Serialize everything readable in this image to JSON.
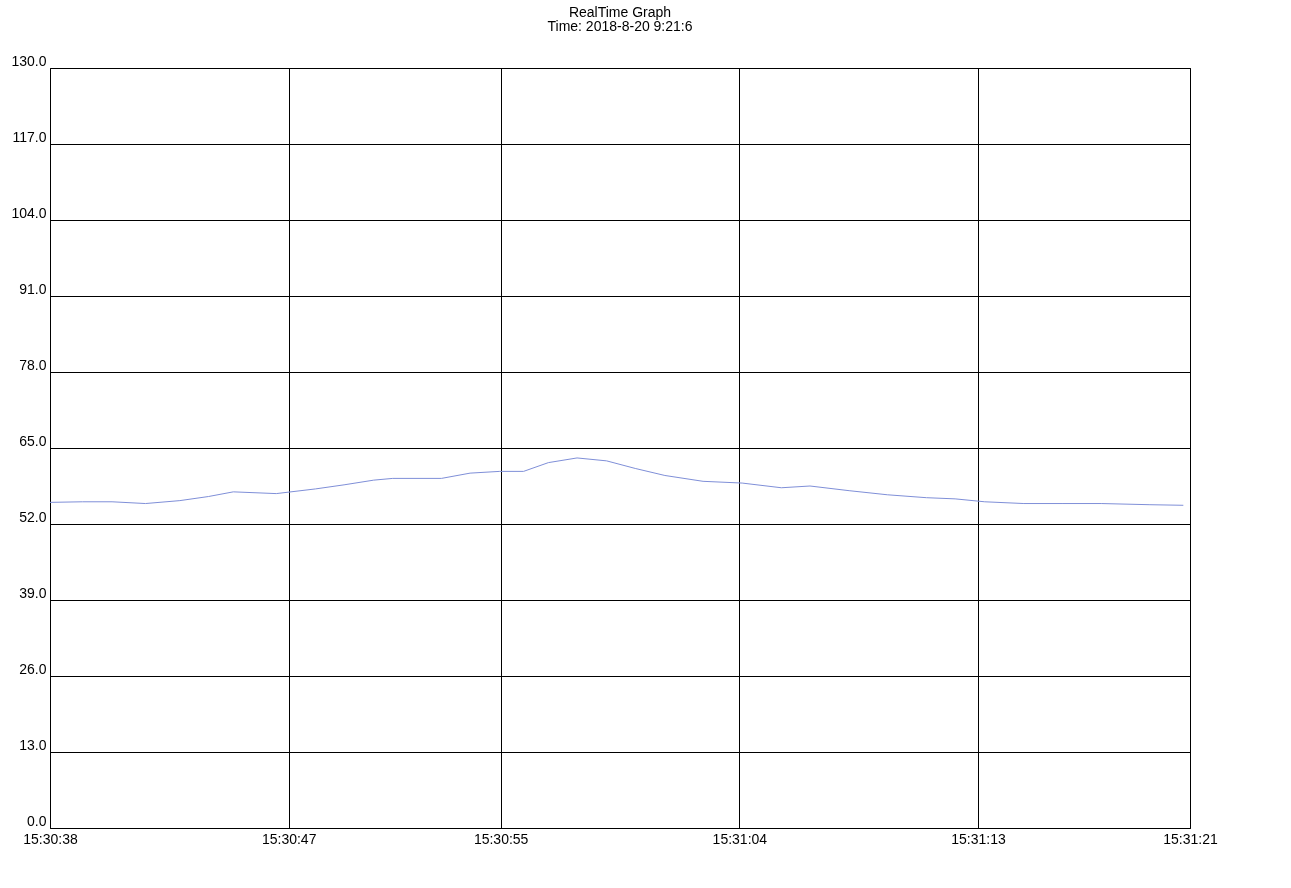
{
  "chart_data": {
    "type": "line",
    "title": "RealTime Graph",
    "subtitle": "Time: 2018-8-20  9:21:6",
    "x": [
      15.51056,
      15.5109,
      15.51121,
      15.51156,
      15.51192,
      15.51222,
      15.51248,
      15.51293,
      15.51334,
      15.51364,
      15.51395,
      15.51415,
      15.51466,
      15.51496,
      15.51527,
      15.51552,
      15.51578,
      15.51608,
      15.51639,
      15.51669,
      15.517,
      15.5174,
      15.51781,
      15.51822,
      15.51852,
      15.51893,
      15.51933,
      15.51974,
      15.52004,
      15.52035,
      15.52076,
      15.52116,
      15.52157,
      15.52208,
      15.52243
    ],
    "series": [
      {
        "color": "#7f8fd8",
        "values": [
          55.7,
          55.8,
          55.8,
          55.5,
          56,
          56.7,
          57.5,
          57.2,
          58,
          58.7,
          59.5,
          59.8,
          59.8,
          60.7,
          61,
          61,
          62.5,
          63.3,
          62.8,
          61.5,
          60.3,
          59.3,
          59,
          58.2,
          58.5,
          57.7,
          57,
          56.5,
          56.3,
          55.8,
          55.5,
          55.5,
          55.5,
          55.3,
          55.2
        ]
      }
    ],
    "xlim": [
      15.51056,
      15.5225
    ],
    "xticks": [
      {
        "value": 15.51056,
        "label": "15:30:38"
      },
      {
        "value": 15.51306,
        "label": "15:30:47"
      },
      {
        "value": 15.51528,
        "label": "15:30:55"
      },
      {
        "value": 15.51778,
        "label": "15:31:04"
      },
      {
        "value": 15.52028,
        "label": "15:31:13"
      },
      {
        "value": 15.5225,
        "label": "15:31:21"
      }
    ],
    "ylim": [
      0,
      130
    ],
    "yticks": [
      {
        "value": 0,
        "label": "0.0"
      },
      {
        "value": 13,
        "label": "13.0"
      },
      {
        "value": 26,
        "label": "26.0"
      },
      {
        "value": 39,
        "label": "39.0"
      },
      {
        "value": 52,
        "label": "52.0"
      },
      {
        "value": 65,
        "label": "65.0"
      },
      {
        "value": 78,
        "label": "78.0"
      },
      {
        "value": 91,
        "label": "91.0"
      },
      {
        "value": 104,
        "label": "104.0"
      },
      {
        "value": 117,
        "label": "117.0"
      },
      {
        "value": 130,
        "label": "130.0"
      }
    ],
    "grid": true,
    "marker": "none",
    "line_style": "solid"
  }
}
